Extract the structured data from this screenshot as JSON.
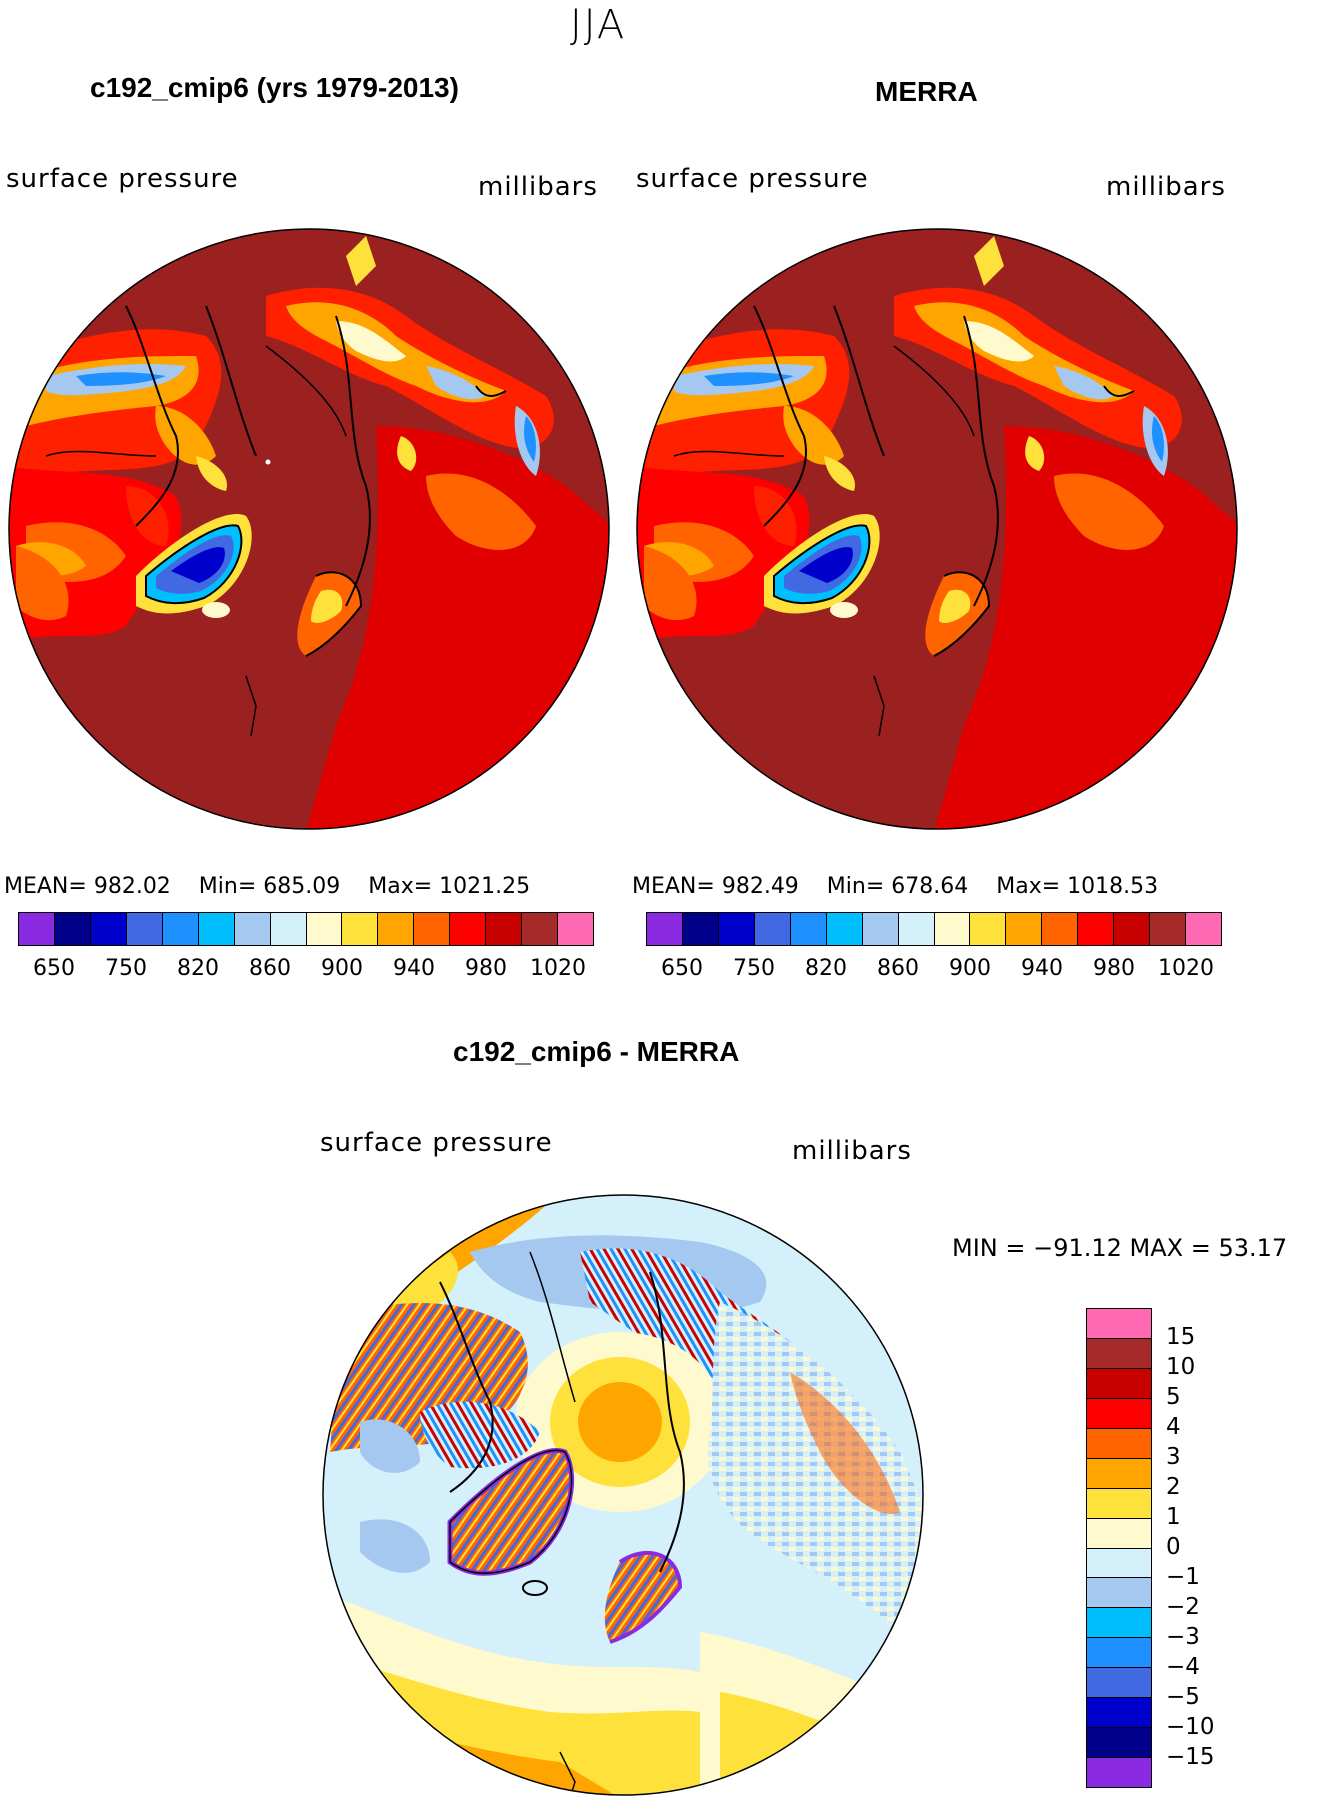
{
  "figure": {
    "season": "JJA",
    "panels": [
      {
        "title": "c192_cmip6 (yrs 1979-2013)",
        "variable": "surface pressure",
        "units": "millibars",
        "stats": {
          "mean_label": "MEAN=",
          "mean": "982.02",
          "min_label": "Min=",
          "min": "685.09",
          "max_label": "Max=",
          "max": "1021.25"
        }
      },
      {
        "title": "MERRA",
        "variable": "surface pressure",
        "units": "millibars",
        "stats": {
          "mean_label": "MEAN=",
          "mean": "982.49",
          "min_label": "Min=",
          "min": "678.64",
          "max_label": "Max=",
          "max": "1018.53"
        }
      }
    ],
    "colorbar": {
      "colors": [
        "#8a2be2",
        "#00008b",
        "#0000cd",
        "#4169e1",
        "#1e90ff",
        "#00bfff",
        "#a4c8f0",
        "#d4f0fa",
        "#fffacd",
        "#ffe13c",
        "#ffa500",
        "#ff6400",
        "#ff0000",
        "#c80000",
        "#a52a2a",
        "#ff69b4"
      ],
      "tick_labels": [
        "650",
        "750",
        "820",
        "860",
        "900",
        "940",
        "980",
        "1020"
      ]
    },
    "difference": {
      "title": "c192_cmip6 - MERRA",
      "variable": "surface pressure",
      "units": "millibars",
      "stats_label": "MIN = −91.12 MAX =  53.17",
      "colorbar": {
        "colors": [
          "#ff69b4",
          "#a52a2a",
          "#c80000",
          "#ff0000",
          "#ff6400",
          "#ffa500",
          "#ffe13c",
          "#fffacd",
          "#d4f0fa",
          "#a4c8f0",
          "#00bfff",
          "#1e90ff",
          "#4169e1",
          "#0000cd",
          "#00008b",
          "#8a2be2"
        ],
        "tick_labels": [
          "15",
          "10",
          "5",
          "4",
          "3",
          "2",
          "1",
          "0",
          "−1",
          "−2",
          "−3",
          "−4",
          "−5",
          "−10",
          "−15"
        ]
      }
    }
  }
}
